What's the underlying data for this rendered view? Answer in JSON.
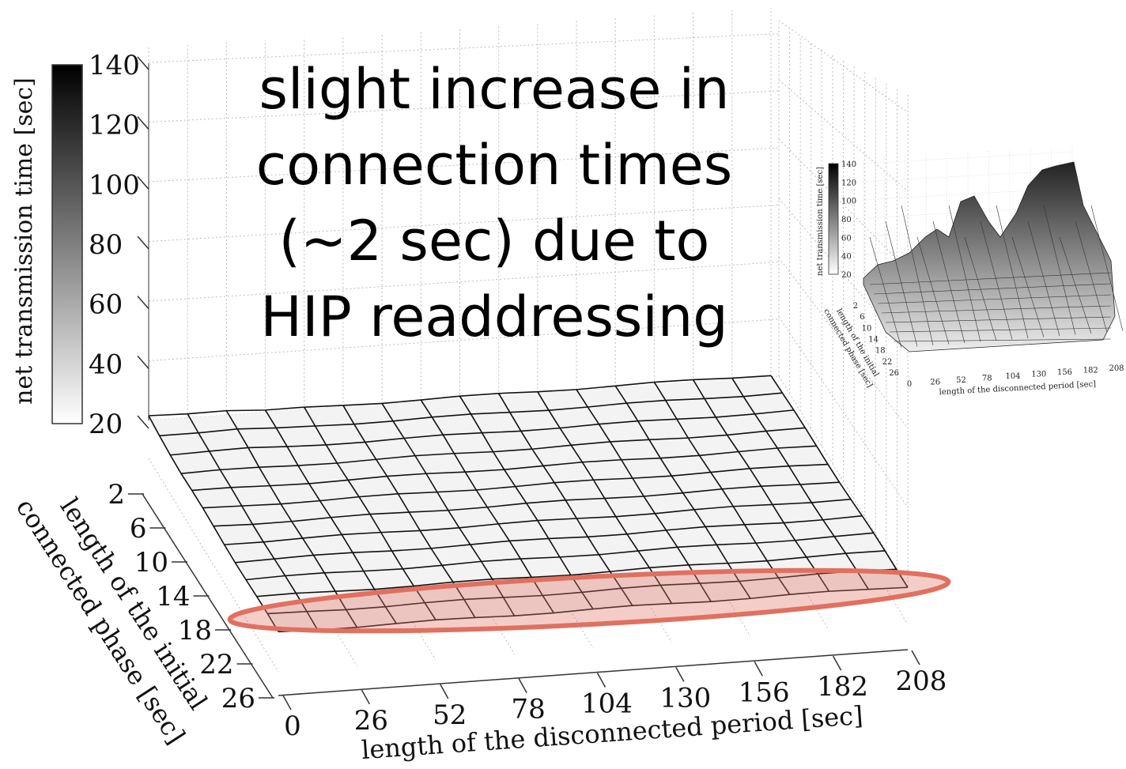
{
  "chart_data": [
    {
      "type": "surface",
      "zlabel": "net transmission time [sec]",
      "xlabel": "length of the disconnected period [sec]",
      "ylabel_line1": "length of the initial",
      "ylabel_line2": "connected phase [sec]",
      "colorbar_ticks": [
        "140",
        "120",
        "100",
        "80",
        "60",
        "40",
        "20"
      ],
      "x_ticks": [
        "0",
        "26",
        "52",
        "78",
        "104",
        "130",
        "156",
        "182",
        "208"
      ],
      "y_ticks": [
        "2",
        "6",
        "10",
        "14",
        "18",
        "22",
        "26"
      ],
      "zlim": [
        20,
        140
      ],
      "annotation_lines": [
        "slight increase in",
        "connection times",
        "(~2 sec) due to",
        "HIP readdressing"
      ],
      "highlight_color": "#e07060",
      "highlight_note": "rows 18-22 highlighted",
      "surface_z_approx": "about 21-23 sec across all cells"
    },
    {
      "type": "surface",
      "role": "inset",
      "zlabel": "net transmission time [sec]",
      "xlabel": "length of the disconnected period [sec]",
      "ylabel_line1": "length of the initial",
      "ylabel_line2": "connected phase [sec]",
      "colorbar_ticks": [
        "140",
        "120",
        "100",
        "80",
        "60",
        "40",
        "20"
      ],
      "x_ticks": [
        "0",
        "26",
        "52",
        "78",
        "104",
        "130",
        "156",
        "182",
        "208"
      ],
      "y_ticks": [
        "2",
        "6",
        "10",
        "14",
        "18",
        "22",
        "26"
      ],
      "zlim": [
        20,
        140
      ]
    }
  ]
}
